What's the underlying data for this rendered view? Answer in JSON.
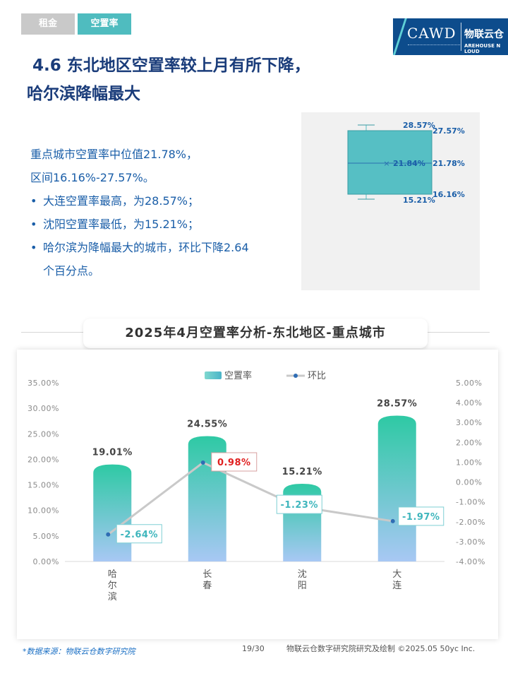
{
  "tabs": {
    "rent": "租金",
    "vacancy": "空置率"
  },
  "logo": {
    "text": "CAWD",
    "brand": "物联云仓",
    "brand_sub": "AREHOUSE  N  LOUD"
  },
  "heading": {
    "line1": "4.6 东北地区空置率较上月有所下降，",
    "line2": "哈尔滨降幅最大"
  },
  "summary": {
    "line1": "重点城市空置率中位值21.78%，",
    "line2": "区间16.16%-27.57%。",
    "bullet1": "大连空置率最高，为28.57%；",
    "bullet2": "沈阳空置率最低，为15.21%；",
    "bullet3a": "哈尔滨为降幅最大的城市，环比下降2.64",
    "bullet3b": "个百分点。"
  },
  "boxplot": {
    "max": "28.57%",
    "q3": "27.57%",
    "median": "21.78%",
    "mean": "21.84%",
    "q1": "16.16%",
    "min": "15.21%",
    "values": {
      "max": 28.57,
      "q3": 27.57,
      "median": 21.78,
      "mean": 21.84,
      "q1": 16.16,
      "min": 15.21
    },
    "color": "#56bfc4"
  },
  "chart_data": {
    "type": "bar",
    "title": "2025年4月空置率分析-东北地区-重点城市",
    "categories": [
      "哈尔滨",
      "长春",
      "沈阳",
      "大连"
    ],
    "series": [
      {
        "name": "空置率",
        "type": "bar",
        "axis": "left",
        "values": [
          19.01,
          24.55,
          15.21,
          28.57
        ],
        "labels": [
          "19.01%",
          "24.55%",
          "15.21%",
          "28.57%"
        ]
      },
      {
        "name": "环比",
        "type": "line",
        "axis": "right",
        "values": [
          -2.64,
          0.98,
          -1.23,
          -1.97
        ],
        "labels": [
          "-2.64%",
          "0.98%",
          "-1.23%",
          "-1.97%"
        ]
      }
    ],
    "ylim_left": [
      0,
      35
    ],
    "yticks_left": [
      "0.00%",
      "5.00%",
      "10.00%",
      "15.00%",
      "20.00%",
      "25.00%",
      "30.00%",
      "35.00%"
    ],
    "ylim_right": [
      -4,
      5
    ],
    "yticks_right": [
      "-4.00%",
      "-3.00%",
      "-2.00%",
      "-1.00%",
      "0.00%",
      "1.00%",
      "2.00%",
      "3.00%",
      "4.00%",
      "5.00%"
    ],
    "legend": "top-center",
    "grid": false,
    "colors": {
      "bar_top": "#2ec9a4",
      "bar_bottom": "#a8c8f4",
      "line": "#c9c9c9",
      "point": "#2f6db4",
      "positive": "#e02020",
      "negative": "#3fb6bd"
    }
  },
  "footer": {
    "source": "*数据来源：物联云仓数字研究院",
    "page": "19/30",
    "credit": "物联云仓数字研究院研究及绘制  ©2025.05 50yc Inc."
  }
}
